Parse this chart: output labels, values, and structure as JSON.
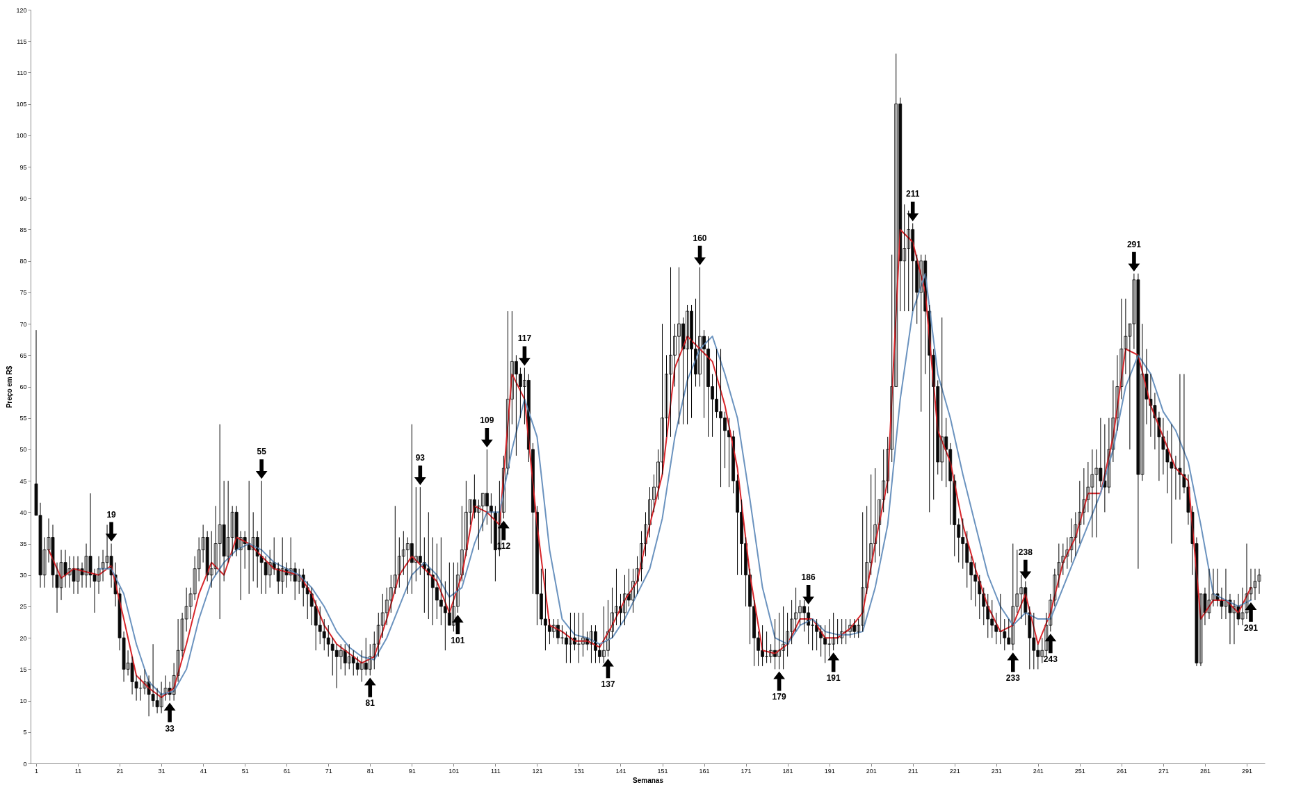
{
  "chart_data": {
    "type": "candlestick",
    "xlabel": "Semanas",
    "ylabel": "Preço em R$",
    "xlim": [
      0.5,
      294.5
    ],
    "xticks": [
      1,
      11,
      21,
      31,
      41,
      51,
      61,
      71,
      81,
      91,
      101,
      111,
      121,
      131,
      141,
      151,
      161,
      171,
      181,
      191,
      201,
      211,
      221,
      231,
      241,
      251,
      261,
      271,
      281,
      291
    ],
    "ylim": [
      0,
      120
    ],
    "yticks": [
      0,
      5,
      10,
      15,
      20,
      25,
      30,
      35,
      40,
      45,
      50,
      55,
      60,
      65,
      70,
      75,
      80,
      85,
      90,
      95,
      100,
      105,
      110,
      115,
      120
    ],
    "x": [
      1,
      2,
      3,
      4,
      5,
      6,
      7,
      8,
      9,
      10,
      11,
      12,
      13,
      14,
      15,
      16,
      17,
      18,
      19,
      20,
      21,
      22,
      23,
      24,
      25,
      26,
      27,
      28,
      29,
      30,
      31,
      32,
      33,
      34,
      35,
      36,
      37,
      38,
      39,
      40,
      41,
      42,
      43,
      44,
      45,
      46,
      47,
      48,
      49,
      50,
      51,
      52,
      53,
      54,
      55,
      56,
      57,
      58,
      59,
      60,
      61,
      62,
      63,
      64,
      65,
      66,
      67,
      68,
      69,
      70,
      71,
      72,
      73,
      74,
      75,
      76,
      77,
      78,
      79,
      80,
      81,
      82,
      83,
      84,
      85,
      86,
      87,
      88,
      89,
      90,
      91,
      92,
      93,
      94,
      95,
      96,
      97,
      98,
      99,
      100,
      101,
      102,
      103,
      104,
      105,
      106,
      107,
      108,
      109,
      110,
      111,
      112,
      113,
      114,
      115,
      116,
      117,
      118,
      119,
      120,
      121,
      122,
      123,
      124,
      125,
      126,
      127,
      128,
      129,
      130,
      131,
      132,
      133,
      134,
      135,
      136,
      137,
      138,
      139,
      140,
      141,
      142,
      143,
      144,
      145,
      146,
      147,
      148,
      149,
      150,
      151,
      152,
      153,
      154,
      155,
      156,
      157,
      158,
      159,
      160,
      161,
      162,
      163,
      164,
      165,
      166,
      167,
      168,
      169,
      170,
      171,
      172,
      173,
      174,
      175,
      176,
      177,
      178,
      179,
      180,
      181,
      182,
      183,
      184,
      185,
      186,
      187,
      188,
      189,
      190,
      191,
      192,
      193,
      194,
      195,
      196,
      197,
      198,
      199,
      200,
      201,
      202,
      203,
      204,
      205,
      206,
      207,
      208,
      209,
      210,
      211,
      212,
      213,
      214,
      215,
      216,
      217,
      218,
      219,
      220,
      221,
      222,
      223,
      224,
      225,
      226,
      227,
      228,
      229,
      230,
      231,
      232,
      233,
      234,
      235,
      236,
      237,
      238,
      239,
      240,
      241,
      242,
      243,
      244,
      245,
      246,
      247,
      248,
      249,
      250,
      251,
      252,
      253,
      254,
      255,
      256,
      257,
      258,
      259,
      260,
      261,
      262,
      263,
      264,
      265,
      266,
      267,
      268,
      269,
      270,
      271,
      272,
      273,
      274,
      275,
      276,
      277,
      278,
      279,
      280,
      281,
      282,
      283,
      284,
      285,
      286,
      287,
      288,
      289,
      290,
      291,
      292,
      293,
      294
    ],
    "ohlc": [
      [
        44.5,
        69,
        39.5,
        39.5
      ],
      [
        39.5,
        41.5,
        28,
        30
      ],
      [
        30,
        36,
        28,
        34
      ],
      [
        34,
        39,
        32,
        36
      ],
      [
        36,
        38,
        28,
        30
      ],
      [
        30,
        32,
        24,
        28
      ],
      [
        28,
        34,
        26,
        32
      ],
      [
        32,
        34,
        28,
        30
      ],
      [
        30,
        33,
        28,
        31
      ],
      [
        31,
        33,
        27,
        29
      ],
      [
        29,
        33,
        27,
        31
      ],
      [
        31,
        32,
        28,
        30
      ],
      [
        30,
        35,
        28,
        33
      ],
      [
        33,
        43,
        28,
        30
      ],
      [
        30,
        31,
        24,
        29
      ],
      [
        29,
        33,
        27,
        31
      ],
      [
        31,
        34,
        29,
        32
      ],
      [
        32,
        38,
        31,
        33
      ],
      [
        33,
        35,
        28,
        30
      ],
      [
        30,
        32,
        25,
        27
      ],
      [
        27,
        28,
        18,
        20
      ],
      [
        20,
        21,
        13,
        15
      ],
      [
        15,
        18,
        14,
        16
      ],
      [
        16,
        17,
        11,
        13
      ],
      [
        13,
        14,
        10,
        12
      ],
      [
        12,
        14,
        10,
        12
      ],
      [
        12,
        15,
        11,
        13
      ],
      [
        13,
        14,
        7.5,
        11
      ],
      [
        11,
        19,
        9,
        10
      ],
      [
        10,
        12,
        8,
        9
      ],
      [
        9,
        13,
        8,
        11
      ],
      [
        11,
        14,
        10,
        12
      ],
      [
        12,
        13,
        10,
        11
      ],
      [
        11,
        16,
        10,
        14
      ],
      [
        14,
        23,
        13,
        18
      ],
      [
        18,
        24,
        17,
        23
      ],
      [
        23,
        28,
        21,
        25
      ],
      [
        25,
        28,
        23,
        27
      ],
      [
        27,
        33,
        26,
        31
      ],
      [
        31,
        36,
        29,
        34
      ],
      [
        34,
        38,
        32,
        36
      ],
      [
        36,
        37,
        29,
        30
      ],
      [
        30,
        37,
        28,
        31
      ],
      [
        31,
        41,
        30,
        35
      ],
      [
        35,
        54,
        23,
        38
      ],
      [
        38,
        45,
        29,
        33
      ],
      [
        33,
        45,
        32,
        36
      ],
      [
        36,
        41,
        33,
        40
      ],
      [
        40,
        41,
        33,
        34
      ],
      [
        34,
        37,
        26,
        36
      ],
      [
        36,
        37,
        31,
        35
      ],
      [
        35,
        45,
        27,
        34
      ],
      [
        34,
        40,
        29,
        36
      ],
      [
        36,
        37,
        28,
        33
      ],
      [
        33,
        45,
        27,
        32
      ],
      [
        32,
        33,
        27,
        30
      ],
      [
        30,
        34,
        28,
        32
      ],
      [
        32,
        36,
        30,
        31
      ],
      [
        31,
        32,
        27,
        29
      ],
      [
        29,
        36,
        27,
        31
      ],
      [
        31,
        32,
        28,
        30
      ],
      [
        30,
        36,
        29,
        31
      ],
      [
        31,
        32,
        26,
        29
      ],
      [
        29,
        31,
        27,
        30
      ],
      [
        30,
        31,
        25,
        28
      ],
      [
        28,
        29,
        23,
        27
      ],
      [
        27,
        28,
        22,
        25
      ],
      [
        25,
        26,
        18,
        22
      ],
      [
        22,
        25,
        19,
        21
      ],
      [
        21,
        23,
        18,
        20
      ],
      [
        20,
        22,
        17,
        19
      ],
      [
        19,
        20,
        14,
        18
      ],
      [
        18,
        19,
        12,
        17
      ],
      [
        17,
        19,
        15,
        18
      ],
      [
        18,
        19,
        14,
        16
      ],
      [
        16,
        19,
        15,
        17
      ],
      [
        17,
        18,
        14,
        16
      ],
      [
        16,
        17,
        14,
        15
      ],
      [
        15,
        18,
        13,
        16
      ],
      [
        16,
        20,
        14,
        15
      ],
      [
        15,
        19,
        14,
        17
      ],
      [
        17,
        21,
        15,
        19
      ],
      [
        19,
        24,
        17,
        22
      ],
      [
        22,
        27,
        20,
        24
      ],
      [
        24,
        28,
        22,
        26
      ],
      [
        26,
        30,
        24,
        28
      ],
      [
        28,
        41,
        27,
        30
      ],
      [
        30,
        36,
        28,
        33
      ],
      [
        33,
        37,
        30,
        34
      ],
      [
        34,
        36,
        27,
        35
      ],
      [
        35,
        54,
        27,
        32
      ],
      [
        32,
        44,
        29,
        33
      ],
      [
        33,
        44,
        30,
        32
      ],
      [
        32,
        36,
        24,
        31
      ],
      [
        31,
        40,
        23,
        30
      ],
      [
        30,
        36,
        22,
        28
      ],
      [
        28,
        35,
        23,
        26
      ],
      [
        26,
        36,
        22,
        25
      ],
      [
        25,
        29,
        18,
        24
      ],
      [
        24,
        32,
        22,
        22
      ],
      [
        22,
        32,
        21,
        25
      ],
      [
        25,
        32,
        24,
        30
      ],
      [
        30,
        41,
        29,
        34
      ],
      [
        34,
        45,
        33,
        40
      ],
      [
        40,
        42,
        38,
        42
      ],
      [
        42,
        46,
        39,
        40
      ],
      [
        40,
        42,
        34,
        41
      ],
      [
        41,
        43,
        37,
        43
      ],
      [
        43,
        50,
        38,
        41
      ],
      [
        41,
        43,
        35,
        40
      ],
      [
        40,
        41,
        29,
        34
      ],
      [
        34,
        45,
        33,
        40
      ],
      [
        40,
        49,
        39,
        47
      ],
      [
        47,
        72,
        46,
        58
      ],
      [
        58,
        72,
        54,
        64
      ],
      [
        64,
        65,
        49,
        62
      ],
      [
        62,
        63,
        55,
        60
      ],
      [
        60,
        63,
        54,
        61
      ],
      [
        61,
        62,
        48,
        50
      ],
      [
        50,
        51,
        27,
        40
      ],
      [
        40,
        41,
        22,
        27
      ],
      [
        27,
        31,
        22,
        23
      ],
      [
        23,
        31,
        18,
        22
      ],
      [
        22,
        23,
        19,
        21
      ],
      [
        21,
        23,
        20,
        22
      ],
      [
        22,
        23,
        19,
        20
      ],
      [
        20,
        22,
        19,
        20
      ],
      [
        20,
        21,
        16,
        19
      ],
      [
        19,
        24,
        16,
        20
      ],
      [
        20,
        24,
        18,
        19
      ],
      [
        19,
        24,
        16,
        19
      ],
      [
        19,
        24,
        17,
        20
      ],
      [
        20,
        21,
        18,
        19
      ],
      [
        19,
        22,
        16,
        21
      ],
      [
        21,
        22,
        16,
        18
      ],
      [
        18,
        19,
        16,
        17
      ],
      [
        17,
        25,
        16,
        18
      ],
      [
        18,
        26,
        17,
        21
      ],
      [
        21,
        28,
        20,
        24
      ],
      [
        24,
        31,
        22,
        25
      ],
      [
        25,
        27,
        22,
        24
      ],
      [
        24,
        30,
        22,
        27
      ],
      [
        27,
        31,
        25,
        26
      ],
      [
        26,
        31,
        24,
        29
      ],
      [
        29,
        33,
        27,
        31
      ],
      [
        31,
        37,
        29,
        35
      ],
      [
        35,
        40,
        33,
        38
      ],
      [
        38,
        44,
        36,
        42
      ],
      [
        42,
        46,
        40,
        44
      ],
      [
        44,
        50,
        42,
        48
      ],
      [
        48,
        70,
        46,
        55
      ],
      [
        55,
        65,
        52,
        62
      ],
      [
        62,
        79,
        52,
        65
      ],
      [
        65,
        70,
        60,
        68
      ],
      [
        68,
        79,
        54,
        70
      ],
      [
        70,
        71,
        54,
        66
      ],
      [
        66,
        73,
        54,
        72
      ],
      [
        72,
        73,
        55,
        66
      ],
      [
        66,
        74,
        60,
        62
      ],
      [
        62,
        79,
        60,
        68
      ],
      [
        68,
        69,
        55,
        66
      ],
      [
        66,
        68,
        52,
        60
      ],
      [
        60,
        62,
        52,
        58
      ],
      [
        58,
        66,
        55,
        56
      ],
      [
        56,
        66,
        44,
        55
      ],
      [
        55,
        56,
        47,
        53
      ],
      [
        53,
        55,
        44,
        52
      ],
      [
        52,
        53,
        43,
        45
      ],
      [
        45,
        46,
        30,
        40
      ],
      [
        40,
        42,
        30,
        35
      ],
      [
        35,
        36,
        25,
        30
      ],
      [
        30,
        31,
        19,
        25
      ],
      [
        25,
        26,
        15.5,
        20
      ],
      [
        20,
        21,
        15.5,
        18
      ],
      [
        18,
        22,
        15.5,
        17
      ],
      [
        17,
        21,
        16,
        17
      ],
      [
        17,
        19,
        16,
        18
      ],
      [
        18,
        23,
        15,
        17
      ],
      [
        17,
        24,
        15,
        18
      ],
      [
        18,
        25,
        15,
        19
      ],
      [
        19,
        24,
        17,
        21
      ],
      [
        21,
        26,
        19,
        23
      ],
      [
        23,
        28,
        21,
        24
      ],
      [
        24,
        26,
        22,
        25
      ],
      [
        25,
        26,
        21,
        24
      ],
      [
        24,
        25,
        19,
        22
      ],
      [
        22,
        23,
        18,
        22
      ],
      [
        22,
        23,
        18,
        21
      ],
      [
        21,
        22,
        17,
        20
      ],
      [
        20,
        22,
        16,
        19
      ],
      [
        19,
        23,
        17,
        19
      ],
      [
        19,
        24,
        18,
        20
      ],
      [
        20,
        23,
        19,
        20
      ],
      [
        20,
        23,
        19,
        21
      ],
      [
        21,
        23,
        19,
        21
      ],
      [
        21,
        23,
        20,
        22
      ],
      [
        22,
        23,
        20,
        21
      ],
      [
        21,
        23,
        20,
        22
      ],
      [
        22,
        40,
        21,
        28
      ],
      [
        28,
        41,
        27,
        32
      ],
      [
        32,
        46,
        30,
        35
      ],
      [
        35,
        47,
        32,
        38
      ],
      [
        38,
        42,
        33,
        42
      ],
      [
        42,
        50,
        40,
        45
      ],
      [
        45,
        52,
        43,
        50
      ],
      [
        50,
        81,
        48,
        60
      ],
      [
        60,
        113,
        60,
        105
      ],
      [
        105,
        106,
        72,
        80
      ],
      [
        80,
        89,
        72,
        82
      ],
      [
        82,
        88,
        72,
        85
      ],
      [
        85,
        86,
        72,
        80
      ],
      [
        80,
        81,
        70,
        75
      ],
      [
        75,
        81,
        56,
        80
      ],
      [
        80,
        81,
        62,
        72
      ],
      [
        72,
        73,
        40,
        65
      ],
      [
        65,
        66,
        42,
        60
      ],
      [
        60,
        61,
        46,
        48
      ],
      [
        48,
        71,
        45,
        52
      ],
      [
        52,
        55,
        44,
        50
      ],
      [
        50,
        51,
        38,
        45
      ],
      [
        45,
        46,
        33,
        38
      ],
      [
        38,
        39,
        32,
        36
      ],
      [
        36,
        39,
        31,
        35
      ],
      [
        35,
        37,
        28,
        32
      ],
      [
        32,
        33,
        26,
        30
      ],
      [
        30,
        32,
        25,
        29
      ],
      [
        29,
        30,
        23,
        27
      ],
      [
        27,
        28,
        22,
        25
      ],
      [
        25,
        27,
        20,
        23
      ],
      [
        23,
        26,
        20,
        22
      ],
      [
        22,
        24,
        19,
        21
      ],
      [
        21,
        27,
        19,
        21
      ],
      [
        21,
        23,
        18,
        20
      ],
      [
        20,
        23,
        19,
        19
      ],
      [
        19,
        35,
        18,
        25
      ],
      [
        25,
        34,
        24,
        27
      ],
      [
        27,
        30,
        23,
        28
      ],
      [
        28,
        29,
        22,
        24
      ],
      [
        24,
        25,
        15,
        20
      ],
      [
        20,
        24,
        15,
        18
      ],
      [
        18,
        19,
        15,
        17
      ],
      [
        17,
        20,
        16,
        18
      ],
      [
        18,
        24,
        17,
        22
      ],
      [
        22,
        27,
        21,
        26
      ],
      [
        26,
        31,
        25,
        30
      ],
      [
        30,
        35,
        28,
        32
      ],
      [
        32,
        35,
        30,
        33
      ],
      [
        33,
        36,
        31,
        34
      ],
      [
        34,
        39,
        32,
        36
      ],
      [
        36,
        40,
        33,
        38
      ],
      [
        38,
        45,
        35,
        40
      ],
      [
        40,
        47,
        38,
        42
      ],
      [
        42,
        48,
        40,
        44
      ],
      [
        44,
        50,
        36,
        46
      ],
      [
        46,
        50,
        36,
        47
      ],
      [
        47,
        55,
        44,
        45
      ],
      [
        45,
        54,
        40,
        44
      ],
      [
        44,
        55,
        43,
        50
      ],
      [
        50,
        61,
        48,
        55
      ],
      [
        55,
        65,
        53,
        60
      ],
      [
        60,
        74,
        58,
        66
      ],
      [
        66,
        74,
        62,
        68
      ],
      [
        68,
        70,
        50,
        70
      ],
      [
        70,
        78,
        66,
        77
      ],
      [
        77,
        78,
        31,
        46
      ],
      [
        46,
        70,
        45,
        62
      ],
      [
        62,
        66,
        54,
        58
      ],
      [
        58,
        62,
        52,
        57
      ],
      [
        57,
        59,
        50,
        55
      ],
      [
        55,
        56,
        45,
        52
      ],
      [
        52,
        55,
        46,
        50
      ],
      [
        50,
        53,
        43,
        48
      ],
      [
        48,
        54,
        35,
        47
      ],
      [
        47,
        49,
        42,
        47
      ],
      [
        47,
        62,
        42,
        46
      ],
      [
        46,
        62,
        43,
        44
      ],
      [
        44,
        46,
        38,
        40
      ],
      [
        40,
        41,
        30,
        35
      ],
      [
        35,
        36,
        15.5,
        16
      ],
      [
        16,
        27,
        15.5,
        27
      ],
      [
        27,
        28,
        22,
        24
      ],
      [
        24,
        31,
        23,
        26
      ],
      [
        26,
        31,
        25,
        27
      ],
      [
        27,
        31,
        25,
        26
      ],
      [
        26,
        28,
        23,
        25
      ],
      [
        25,
        31,
        23,
        26
      ],
      [
        26,
        27,
        19,
        24
      ],
      [
        24,
        26,
        19,
        25
      ],
      [
        25,
        27,
        22,
        23
      ],
      [
        23,
        28,
        22,
        24
      ],
      [
        24,
        35,
        23,
        27
      ],
      [
        27,
        31,
        26,
        28
      ],
      [
        28,
        31,
        26,
        29
      ],
      [
        29,
        31,
        27,
        30
      ]
    ],
    "series": [
      {
        "type": "line",
        "color": "#d7262b",
        "x": [
          4,
          7,
          10,
          13,
          16,
          19,
          22,
          25,
          28,
          31,
          34,
          37,
          40,
          43,
          46,
          49,
          52,
          55,
          58,
          61,
          64,
          67,
          70,
          73,
          76,
          79,
          82,
          85,
          88,
          91,
          94,
          97,
          100,
          103,
          106,
          109,
          112,
          115,
          118,
          121,
          124,
          127,
          130,
          133,
          136,
          139,
          142,
          145,
          148,
          151,
          154,
          157,
          160,
          163,
          166,
          169,
          172,
          175,
          178,
          181,
          184,
          187,
          190,
          193,
          196,
          199,
          202,
          205,
          208,
          211,
          214,
          217,
          220,
          223,
          226,
          229,
          232,
          235,
          238,
          241,
          244,
          247,
          250,
          253,
          256,
          259,
          262,
          265,
          268,
          271,
          274,
          277,
          280,
          283,
          286,
          289,
          292
        ],
        "values": [
          34,
          29.5,
          31,
          30.5,
          30,
          31.5,
          23,
          14,
          12,
          10.5,
          12,
          19,
          27,
          32,
          30,
          36,
          35,
          33,
          31,
          30.5,
          30,
          27,
          22,
          19,
          17.5,
          16,
          17,
          23,
          30,
          33,
          31,
          29,
          24,
          30,
          41,
          40,
          38,
          62,
          58,
          38,
          22,
          21,
          19.5,
          19.5,
          18.5,
          22,
          26,
          29,
          38,
          46,
          63,
          68,
          66,
          64,
          57,
          47,
          30,
          18,
          17.5,
          19,
          23,
          23,
          20,
          20,
          21.5,
          24,
          35,
          45,
          85,
          83,
          75,
          53,
          48,
          38,
          31,
          25,
          21,
          22,
          27,
          19,
          24,
          32,
          36,
          43,
          43,
          52,
          66,
          65,
          57,
          52,
          47,
          45,
          23,
          26,
          26,
          24,
          28
        ]
      },
      {
        "type": "line",
        "color": "#6b93bf",
        "x": [
          16,
          19,
          22,
          25,
          28,
          31,
          34,
          37,
          40,
          43,
          46,
          49,
          52,
          55,
          58,
          61,
          64,
          67,
          70,
          73,
          76,
          79,
          82,
          85,
          88,
          91,
          94,
          97,
          100,
          103,
          106,
          109,
          112,
          115,
          118,
          121,
          124,
          127,
          130,
          133,
          136,
          139,
          142,
          145,
          148,
          151,
          154,
          157,
          160,
          163,
          166,
          169,
          172,
          175,
          178,
          181,
          184,
          187,
          190,
          193,
          196,
          199,
          202,
          205,
          208,
          211,
          214,
          217,
          220,
          223,
          226,
          229,
          232,
          235,
          238,
          241,
          244,
          247,
          250,
          253,
          256,
          259,
          262,
          265,
          268,
          271,
          274,
          277,
          280,
          283,
          286,
          289,
          292
        ],
        "values": [
          31,
          31,
          27,
          19,
          13,
          11,
          11.5,
          15,
          23,
          29,
          32,
          34,
          35,
          34,
          32,
          31,
          30,
          28,
          25,
          21,
          18.5,
          17,
          16.5,
          20,
          25,
          30,
          32,
          30,
          26.5,
          28,
          35,
          40,
          40,
          50,
          58,
          52,
          34,
          23,
          20.5,
          20,
          19,
          20,
          23,
          27,
          31,
          39,
          52,
          61,
          66,
          68,
          62,
          55,
          42,
          28,
          20,
          19,
          22,
          23,
          21,
          20.5,
          20.5,
          21,
          28,
          38,
          58,
          72,
          78,
          62,
          55,
          46,
          38,
          30,
          25,
          22,
          24,
          23,
          23,
          28,
          33,
          38,
          43,
          50,
          60,
          65,
          62,
          56,
          53,
          48,
          38,
          27,
          26,
          25,
          26
        ]
      }
    ],
    "annotations": [
      {
        "text": "19",
        "x": 19,
        "y": 35
      },
      {
        "text": "33",
        "x": 33,
        "y": 10
      },
      {
        "text": "55",
        "x": 55,
        "y": 45
      },
      {
        "text": "81",
        "x": 81,
        "y": 14
      },
      {
        "text": "93",
        "x": 93,
        "y": 44
      },
      {
        "text": "101",
        "x": 102,
        "y": 24
      },
      {
        "text": "109",
        "x": 109,
        "y": 50
      },
      {
        "text": "112",
        "x": 113,
        "y": 39
      },
      {
        "text": "117",
        "x": 118,
        "y": 63
      },
      {
        "text": "137",
        "x": 138,
        "y": 17
      },
      {
        "text": "160",
        "x": 160,
        "y": 79
      },
      {
        "text": "179",
        "x": 179,
        "y": 15
      },
      {
        "text": "186",
        "x": 186,
        "y": 25
      },
      {
        "text": "191",
        "x": 192,
        "y": 18
      },
      {
        "text": "211",
        "x": 211,
        "y": 86
      },
      {
        "text": "233",
        "x": 235,
        "y": 18
      },
      {
        "text": "238",
        "x": 238,
        "y": 29
      },
      {
        "text": "243",
        "x": 244,
        "y": 21
      },
      {
        "text": "291",
        "x": 264,
        "y": 78
      },
      {
        "text": "291",
        "x": 292,
        "y": 26
      }
    ]
  }
}
